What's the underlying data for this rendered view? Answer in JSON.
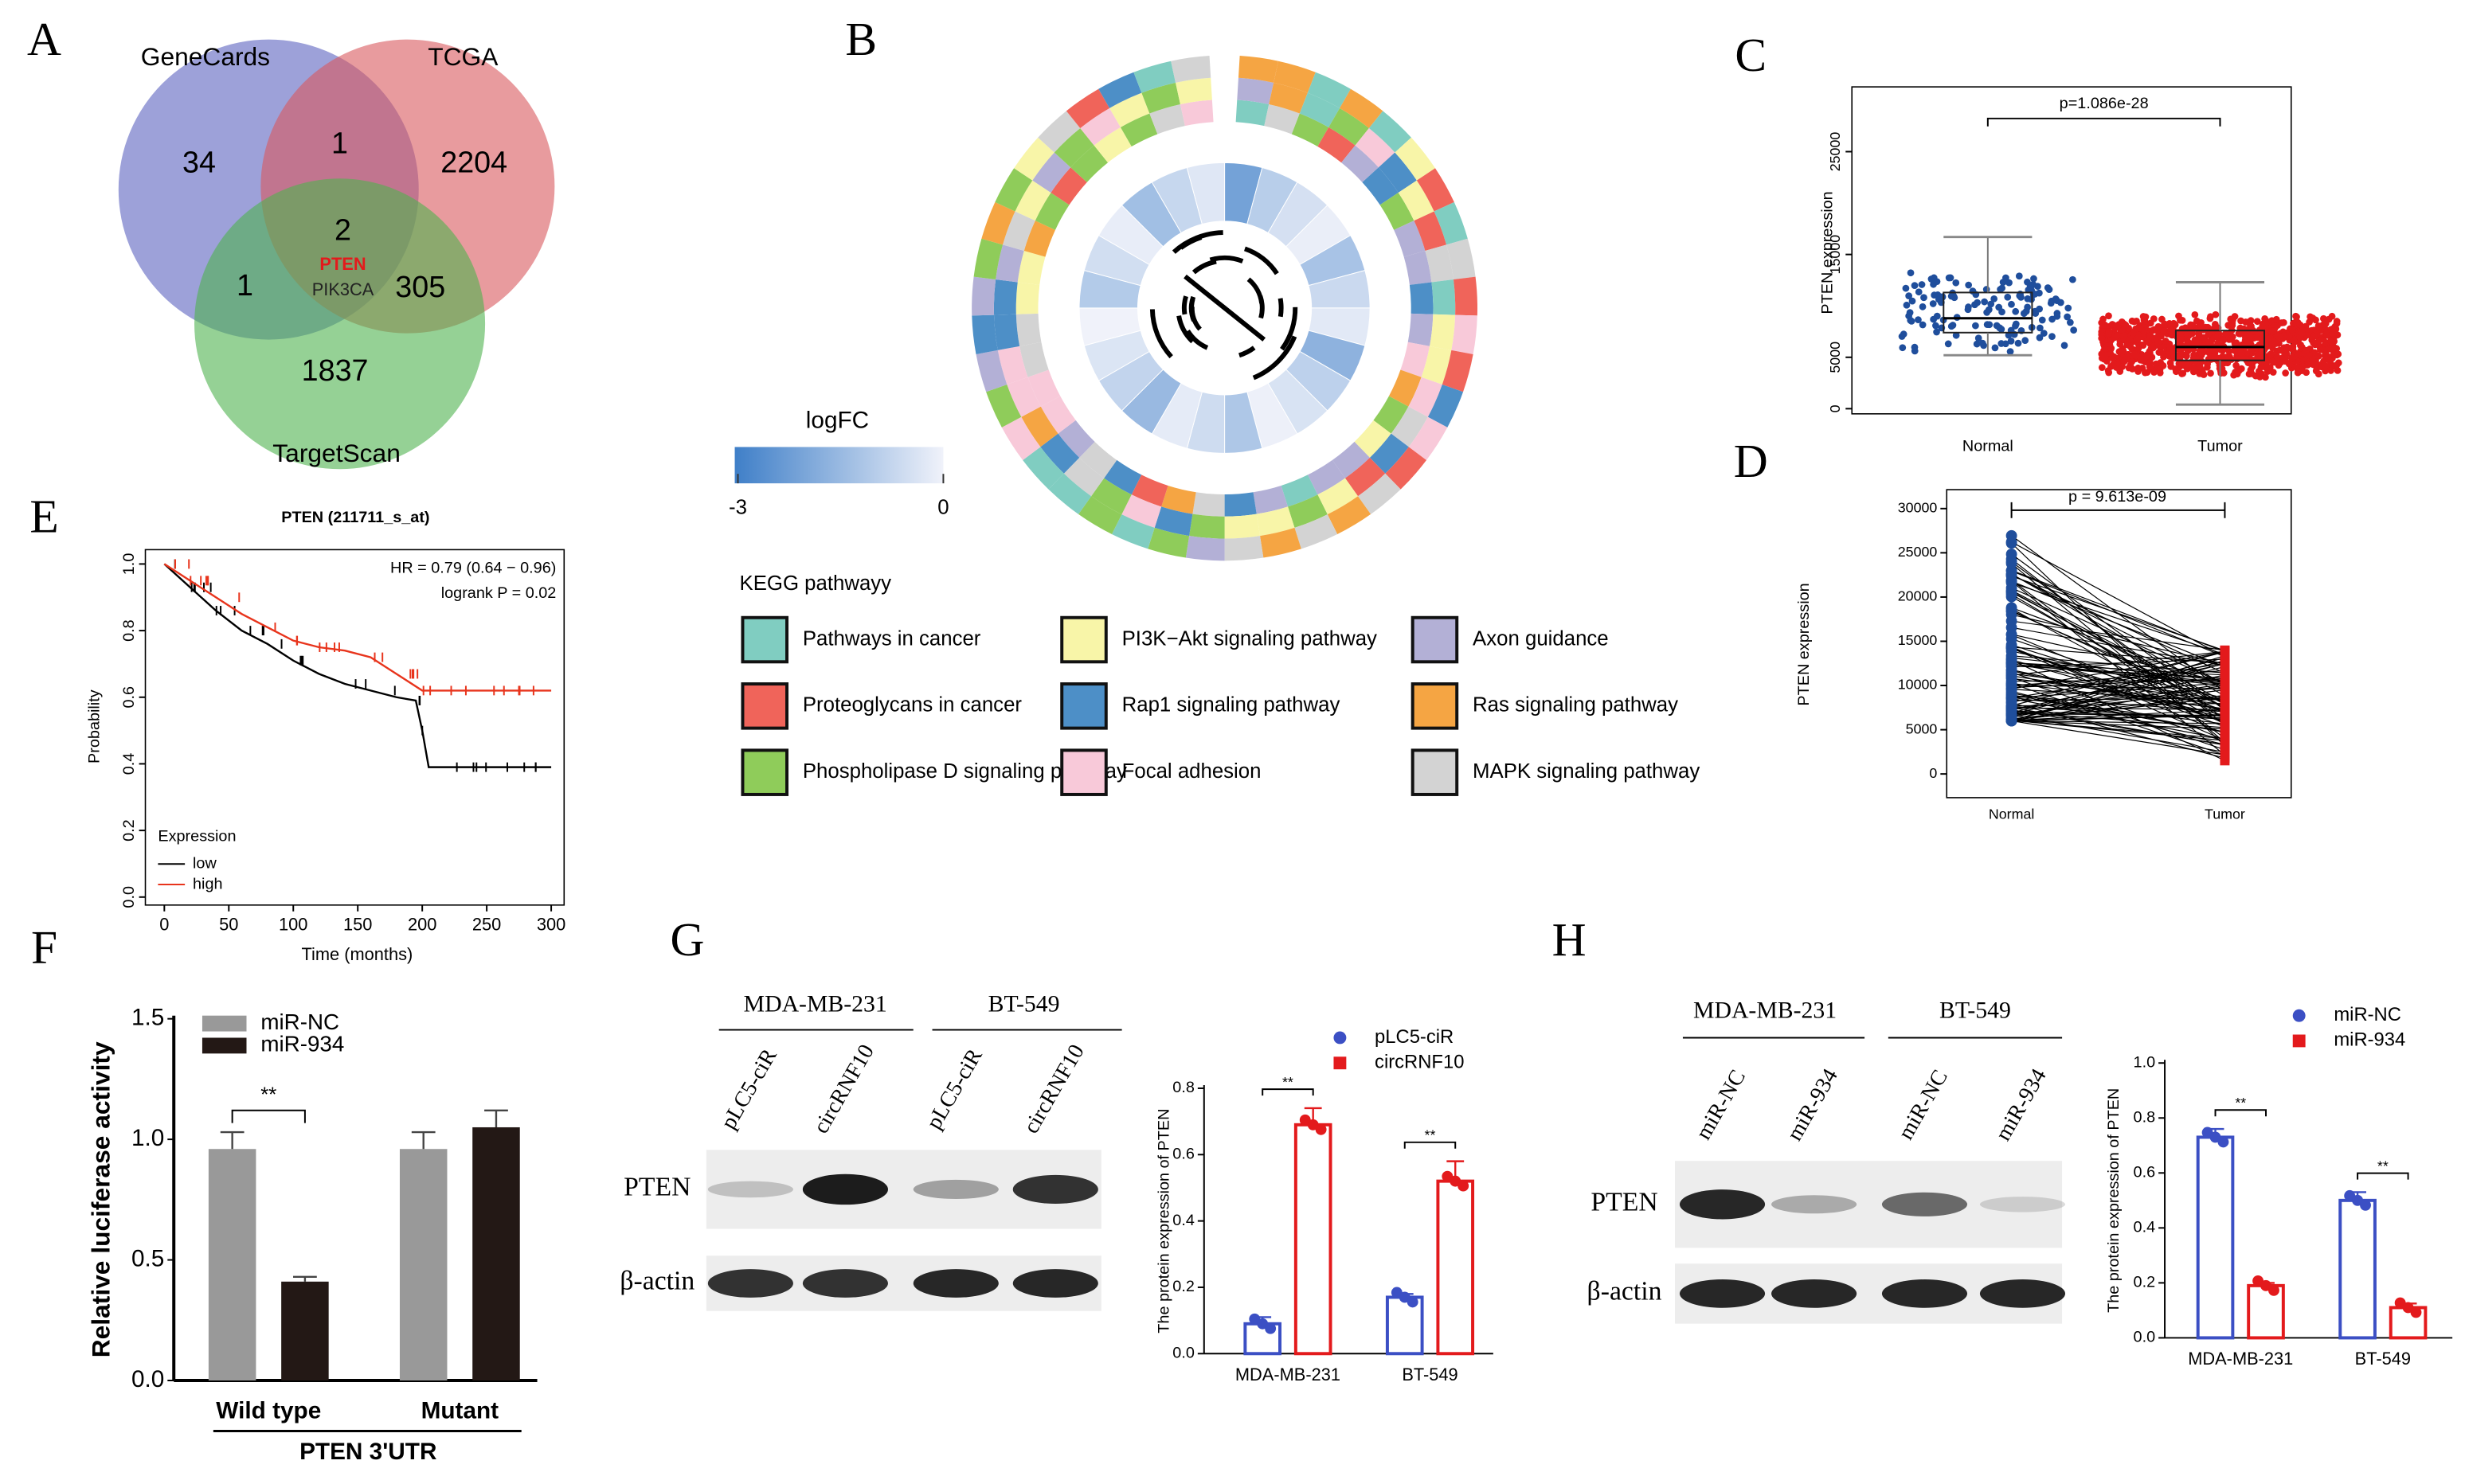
{
  "panel_labels": [
    "A",
    "B",
    "C",
    "D",
    "E",
    "F",
    "G",
    "H"
  ],
  "venn": {
    "sets": [
      {
        "name": "GeneCards",
        "color": "#5b63c0"
      },
      {
        "name": "TCGA",
        "color": "#d9585e"
      },
      {
        "name": "TargetScan",
        "color": "#4fb34f"
      }
    ],
    "regions": [
      34,
      1,
      2204,
      2,
      1,
      305,
      1837
    ],
    "genes": [
      "PTEN",
      "PIK3CA"
    ]
  },
  "circos": {
    "legend_title": "logFC",
    "scale_ticks": [
      -3,
      0
    ],
    "scale_colors": [
      "#3f7fc8",
      "#f0f2fa"
    ],
    "pathway_title": "KEGG pathwayy",
    "pathways": [
      {
        "name": "Pathways in cancer",
        "color": "#80cdc1"
      },
      {
        "name": "Proteoglycans in cancer",
        "color": "#f0645a"
      },
      {
        "name": "Phospholipase D signaling pathway",
        "color": "#8fcc5a"
      },
      {
        "name": "PI3K−Akt signaling pathway",
        "color": "#f8f5a8"
      },
      {
        "name": "Rap1 signaling pathway",
        "color": "#4d8fc7"
      },
      {
        "name": "Focal adhesion",
        "color": "#f8c9d9"
      },
      {
        "name": "Axon guidance",
        "color": "#b3b0d6"
      },
      {
        "name": "Ras signaling pathway",
        "color": "#f5a543"
      },
      {
        "name": "MAPK signaling pathway",
        "color": "#d3d3d3"
      }
    ]
  },
  "blots": [
    {
      "cell_lines": [
        "MDA-MB-231",
        "BT-549"
      ],
      "lanes": [
        "pLC5-ciR",
        "circRNF10",
        "pLC5-ciR",
        "circRNF10"
      ],
      "proteins": [
        "PTEN",
        "β-actin"
      ]
    },
    {
      "cell_lines": [
        "MDA-MB-231",
        "BT-549"
      ],
      "lanes": [
        "miR-NC",
        "miR-934",
        "miR-NC",
        "miR-934"
      ],
      "proteins": [
        "PTEN",
        "β-actin"
      ]
    }
  ],
  "chart_data": [
    {
      "type": "box",
      "ylabel": "PTEN expression",
      "annotation": "p=1.086e-28",
      "categories": [
        "Normal",
        "Tumor"
      ],
      "colors": [
        "#1f4e9c",
        "#e31a1c"
      ],
      "whisker_low": [
        5200,
        400
      ],
      "q1": [
        7400,
        4700
      ],
      "medians": [
        8800,
        6000
      ],
      "q3": [
        11300,
        7600
      ],
      "whisker_high": [
        16700,
        12300
      ],
      "ylim": [
        -500,
        31300
      ],
      "yticks": [
        0,
        5000,
        15000,
        25000
      ]
    },
    {
      "type": "paired",
      "ylabel": "PTEN expression",
      "annotation": "p = 9.613e-09",
      "categories": [
        "Normal",
        "Tumor"
      ],
      "colors": [
        "#1f4e9c",
        "#e31a1c"
      ],
      "ylim": [
        -2680,
        32140
      ],
      "yticks": [
        0,
        5000,
        10000,
        15000,
        20000,
        25000,
        30000
      ]
    },
    {
      "type": "line",
      "title": "PTEN (211711_s_at)",
      "annotations": [
        "HR = 0.79 (0.64 − 0.96)",
        "logrank P = 0.02"
      ],
      "xlabel": "Time (months)",
      "ylabel": "Probability",
      "legend_title": "Expression",
      "series": [
        {
          "name": "low",
          "color": "#000000",
          "x": [
            0,
            20,
            40,
            60,
            80,
            100,
            120,
            140,
            160,
            180,
            195,
            200,
            205,
            300
          ],
          "values": [
            1,
            0.93,
            0.86,
            0.8,
            0.76,
            0.71,
            0.67,
            0.64,
            0.62,
            0.6,
            0.59,
            0.5,
            0.39,
            0.39
          ]
        },
        {
          "name": "high",
          "color": "#e8341c",
          "x": [
            0,
            20,
            40,
            60,
            80,
            100,
            120,
            140,
            160,
            180,
            200,
            300
          ],
          "values": [
            1,
            0.95,
            0.9,
            0.85,
            0.81,
            0.77,
            0.75,
            0.74,
            0.72,
            0.67,
            0.62,
            0.62
          ]
        }
      ],
      "xlim": [
        -14.7,
        310
      ],
      "xticks": [
        0,
        50,
        100,
        150,
        200,
        250,
        300
      ],
      "ylim": [
        -0.024,
        1.043
      ],
      "yticks": [
        {
          "value": 0,
          "label": "0.0"
        },
        0.2,
        0.4,
        0.6,
        0.8,
        {
          "value": 1,
          "label": "1.0"
        }
      ]
    },
    {
      "type": "bar",
      "bar_style": "filled",
      "ylabel": "Relative luciferase activity",
      "xlabel": "PTEN 3'UTR",
      "annotation": "**",
      "categories": [
        "Wild type",
        "Mutant"
      ],
      "series": [
        {
          "name": "miR-NC",
          "color": "#999999",
          "values": [
            0.96,
            0.96
          ],
          "errors": [
            0.07,
            0.07
          ]
        },
        {
          "name": "miR-934",
          "color": "#231815",
          "values": [
            0.41,
            1.05
          ],
          "errors": [
            0.02,
            0.07
          ]
        }
      ],
      "ylim": [
        0,
        1.5
      ],
      "yticks": [
        {
          "value": 0,
          "label": "0.0"
        },
        0.5,
        {
          "value": 1,
          "label": "1.0"
        },
        1.5
      ]
    },
    {
      "type": "bar",
      "bar_style": "outline",
      "ylabel": "The protein expression of PTEN",
      "annotation": "**",
      "categories": [
        "MDA-MB-231",
        "BT-549"
      ],
      "series": [
        {
          "name": "pLC5-ciR",
          "color": "#3b4fc4",
          "values": [
            0.09,
            0.17
          ],
          "errors": [
            0.02,
            0.01
          ]
        },
        {
          "name": "circRNF10",
          "color": "#e31a1c",
          "values": [
            0.69,
            0.52
          ],
          "errors": [
            0.05,
            0.06
          ]
        }
      ],
      "ylim": [
        0,
        0.8
      ],
      "yticks": [
        {
          "value": 0,
          "label": "0.0"
        },
        0.2,
        0.4,
        0.6,
        0.8
      ]
    },
    {
      "type": "bar",
      "bar_style": "outline",
      "ylabel": "The protein expression of PTEN",
      "annotation": "**",
      "categories": [
        "MDA-MB-231",
        "BT-549"
      ],
      "series": [
        {
          "name": "miR-NC",
          "color": "#3b4fc4",
          "values": [
            0.73,
            0.5
          ],
          "errors": [
            0.03,
            0.03
          ]
        },
        {
          "name": "miR-934",
          "color": "#e31a1c",
          "values": [
            0.19,
            0.11
          ],
          "errors": [
            0.01,
            0.015
          ]
        }
      ],
      "ylim": [
        0,
        1
      ],
      "yticks": [
        {
          "value": 0,
          "label": "0.0"
        },
        0.2,
        0.4,
        0.6,
        0.8,
        {
          "value": 1,
          "label": "1.0"
        }
      ]
    }
  ]
}
